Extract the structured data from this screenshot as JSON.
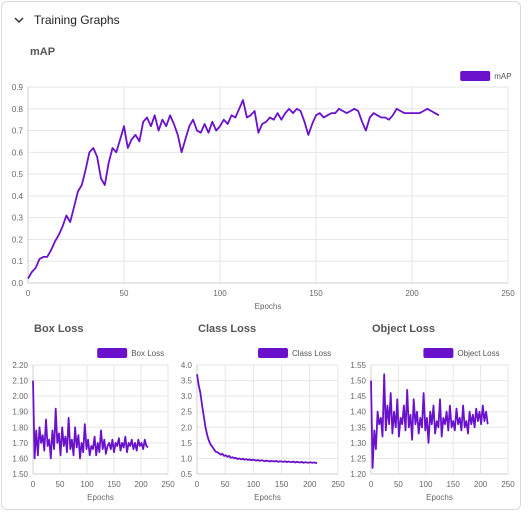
{
  "panel": {
    "title": "Training Graphs"
  },
  "colors": {
    "series": "#6a11cb",
    "grid": "#e6e6e6",
    "axis": "#666666"
  },
  "chart_data": [
    {
      "id": "map",
      "type": "line",
      "title": "mAP",
      "xlabel": "Epochs",
      "ylabel": "",
      "legend": [
        "mAP"
      ],
      "legend_position": "top-right",
      "grid": true,
      "xlim": [
        0,
        250
      ],
      "ylim": [
        0,
        0.9
      ],
      "xticks": [
        0,
        50,
        100,
        150,
        200,
        250
      ],
      "yticks": [
        0,
        0.1,
        0.2,
        0.3,
        0.4,
        0.5,
        0.6,
        0.7,
        0.8,
        0.9
      ],
      "ytick_format": 1,
      "series": [
        {
          "name": "mAP",
          "x": [
            0,
            2,
            4,
            6,
            8,
            10,
            12,
            14,
            16,
            18,
            20,
            22,
            24,
            26,
            28,
            30,
            32,
            34,
            36,
            38,
            40,
            42,
            44,
            46,
            48,
            50,
            52,
            54,
            56,
            58,
            60,
            62,
            64,
            66,
            68,
            70,
            72,
            74,
            76,
            78,
            80,
            82,
            84,
            86,
            88,
            90,
            92,
            94,
            96,
            98,
            100,
            102,
            104,
            106,
            108,
            110,
            112,
            114,
            116,
            118,
            120,
            122,
            124,
            126,
            128,
            130,
            132,
            134,
            136,
            138,
            140,
            142,
            144,
            146,
            148,
            150,
            152,
            154,
            156,
            158,
            160,
            162,
            164,
            166,
            168,
            170,
            172,
            174,
            176,
            178,
            180,
            182,
            184,
            186,
            188,
            190,
            192,
            194,
            196,
            198,
            200,
            202,
            204,
            206,
            208,
            210,
            212,
            214
          ],
          "y": [
            0.02,
            0.05,
            0.07,
            0.11,
            0.12,
            0.12,
            0.15,
            0.19,
            0.22,
            0.26,
            0.31,
            0.28,
            0.35,
            0.42,
            0.45,
            0.52,
            0.6,
            0.62,
            0.58,
            0.48,
            0.45,
            0.55,
            0.62,
            0.6,
            0.66,
            0.72,
            0.62,
            0.66,
            0.68,
            0.65,
            0.74,
            0.76,
            0.72,
            0.77,
            0.7,
            0.75,
            0.72,
            0.77,
            0.73,
            0.68,
            0.6,
            0.66,
            0.72,
            0.75,
            0.7,
            0.69,
            0.73,
            0.69,
            0.74,
            0.7,
            0.72,
            0.75,
            0.73,
            0.77,
            0.76,
            0.8,
            0.84,
            0.76,
            0.77,
            0.79,
            0.69,
            0.73,
            0.74,
            0.76,
            0.75,
            0.78,
            0.75,
            0.78,
            0.8,
            0.78,
            0.8,
            0.79,
            0.74,
            0.68,
            0.73,
            0.77,
            0.78,
            0.76,
            0.77,
            0.78,
            0.78,
            0.8,
            0.79,
            0.78,
            0.79,
            0.8,
            0.79,
            0.74,
            0.7,
            0.76,
            0.78,
            0.77,
            0.76,
            0.76,
            0.75,
            0.77,
            0.8,
            0.79,
            0.78,
            0.78,
            0.78,
            0.78,
            0.78,
            0.79,
            0.8,
            0.79,
            0.78,
            0.77
          ]
        }
      ]
    },
    {
      "id": "box",
      "type": "line",
      "title": "Box Loss",
      "xlabel": "Epochs",
      "ylabel": "",
      "legend": [
        "Box Loss"
      ],
      "legend_position": "top-right",
      "grid": true,
      "xlim": [
        0,
        250
      ],
      "ylim": [
        1.5,
        2.2
      ],
      "xticks": [
        0,
        50,
        100,
        150,
        200,
        250
      ],
      "yticks": [
        1.5,
        1.6,
        1.7,
        1.8,
        1.9,
        2.0,
        2.1,
        2.2
      ],
      "ytick_format": 2,
      "series": [
        {
          "name": "Box Loss",
          "x": [
            0,
            3,
            6,
            9,
            12,
            15,
            18,
            21,
            24,
            27,
            30,
            33,
            36,
            39,
            42,
            45,
            48,
            51,
            54,
            57,
            60,
            63,
            66,
            69,
            72,
            75,
            78,
            81,
            84,
            87,
            90,
            93,
            96,
            99,
            102,
            105,
            108,
            111,
            114,
            117,
            120,
            123,
            126,
            129,
            132,
            135,
            138,
            141,
            144,
            147,
            150,
            153,
            156,
            159,
            162,
            165,
            168,
            171,
            174,
            177,
            180,
            183,
            186,
            189,
            192,
            195,
            198,
            201,
            204,
            207,
            210,
            213
          ],
          "y": [
            2.1,
            1.6,
            1.78,
            1.62,
            1.8,
            1.7,
            1.75,
            1.65,
            1.85,
            1.68,
            1.72,
            1.6,
            1.78,
            1.66,
            1.92,
            1.7,
            1.76,
            1.62,
            1.8,
            1.68,
            1.74,
            1.64,
            1.86,
            1.66,
            1.72,
            1.62,
            1.8,
            1.67,
            1.75,
            1.6,
            1.7,
            1.64,
            1.82,
            1.66,
            1.72,
            1.62,
            1.68,
            1.66,
            1.74,
            1.62,
            1.7,
            1.64,
            1.78,
            1.66,
            1.72,
            1.63,
            1.68,
            1.7,
            1.66,
            1.72,
            1.64,
            1.7,
            1.68,
            1.73,
            1.65,
            1.7,
            1.67,
            1.74,
            1.64,
            1.7,
            1.68,
            1.72,
            1.66,
            1.7,
            1.65,
            1.72,
            1.68,
            1.7,
            1.66,
            1.72,
            1.68,
            1.67
          ]
        }
      ]
    },
    {
      "id": "class",
      "type": "line",
      "title": "Class Loss",
      "xlabel": "Epochs",
      "ylabel": "",
      "legend": [
        "Class Loss"
      ],
      "legend_position": "top-right",
      "grid": true,
      "xlim": [
        0,
        250
      ],
      "ylim": [
        0.5,
        4.0
      ],
      "xticks": [
        0,
        50,
        100,
        150,
        200,
        250
      ],
      "yticks": [
        0.5,
        1.0,
        1.5,
        2.0,
        2.5,
        3.0,
        3.5,
        4.0
      ],
      "ytick_format": 1,
      "series": [
        {
          "name": "Class Loss",
          "x": [
            0,
            3,
            6,
            9,
            12,
            15,
            18,
            21,
            24,
            27,
            30,
            33,
            36,
            39,
            42,
            45,
            48,
            51,
            54,
            57,
            60,
            63,
            66,
            69,
            72,
            75,
            78,
            81,
            84,
            87,
            90,
            93,
            96,
            99,
            102,
            105,
            108,
            111,
            114,
            117,
            120,
            123,
            126,
            129,
            132,
            135,
            138,
            141,
            144,
            147,
            150,
            153,
            156,
            159,
            162,
            165,
            168,
            171,
            174,
            177,
            180,
            183,
            186,
            189,
            192,
            195,
            198,
            201,
            204,
            207,
            210,
            213
          ],
          "y": [
            3.7,
            3.35,
            3.1,
            2.7,
            2.35,
            2.0,
            1.75,
            1.58,
            1.45,
            1.38,
            1.3,
            1.22,
            1.2,
            1.16,
            1.12,
            1.15,
            1.08,
            1.1,
            1.05,
            1.08,
            1.02,
            1.04,
            1.0,
            1.02,
            0.98,
            1.0,
            0.97,
            0.99,
            0.96,
            0.98,
            0.95,
            0.97,
            0.94,
            0.96,
            0.95,
            0.93,
            0.95,
            0.92,
            0.94,
            0.93,
            0.91,
            0.93,
            0.92,
            0.9,
            0.92,
            0.91,
            0.9,
            0.92,
            0.89,
            0.91,
            0.9,
            0.89,
            0.91,
            0.88,
            0.9,
            0.89,
            0.88,
            0.9,
            0.87,
            0.89,
            0.88,
            0.87,
            0.89,
            0.86,
            0.88,
            0.87,
            0.86,
            0.88,
            0.86,
            0.87,
            0.86,
            0.85
          ]
        }
      ]
    },
    {
      "id": "object",
      "type": "line",
      "title": "Object Loss",
      "xlabel": "Epochs",
      "ylabel": "",
      "legend": [
        "Object Loss"
      ],
      "legend_position": "top-right",
      "grid": true,
      "xlim": [
        0,
        250
      ],
      "ylim": [
        1.2,
        1.55
      ],
      "xticks": [
        0,
        50,
        100,
        150,
        200,
        250
      ],
      "yticks": [
        1.2,
        1.25,
        1.3,
        1.35,
        1.4,
        1.45,
        1.5,
        1.55
      ],
      "ytick_format": 2,
      "series": [
        {
          "name": "Object Loss",
          "x": [
            0,
            3,
            6,
            9,
            12,
            15,
            18,
            21,
            24,
            27,
            30,
            33,
            36,
            39,
            42,
            45,
            48,
            51,
            54,
            57,
            60,
            63,
            66,
            69,
            72,
            75,
            78,
            81,
            84,
            87,
            90,
            93,
            96,
            99,
            102,
            105,
            108,
            111,
            114,
            117,
            120,
            123,
            126,
            129,
            132,
            135,
            138,
            141,
            144,
            147,
            150,
            153,
            156,
            159,
            162,
            165,
            168,
            171,
            174,
            177,
            180,
            183,
            186,
            189,
            192,
            195,
            198,
            201,
            204,
            207,
            210,
            213
          ],
          "y": [
            1.5,
            1.22,
            1.34,
            1.28,
            1.4,
            1.36,
            1.38,
            1.32,
            1.52,
            1.34,
            1.42,
            1.36,
            1.46,
            1.33,
            1.4,
            1.35,
            1.44,
            1.32,
            1.38,
            1.36,
            1.42,
            1.34,
            1.47,
            1.35,
            1.39,
            1.31,
            1.44,
            1.36,
            1.4,
            1.33,
            1.38,
            1.35,
            1.46,
            1.34,
            1.38,
            1.3,
            1.4,
            1.36,
            1.42,
            1.33,
            1.37,
            1.35,
            1.44,
            1.32,
            1.38,
            1.36,
            1.4,
            1.34,
            1.42,
            1.35,
            1.37,
            1.34,
            1.41,
            1.36,
            1.38,
            1.34,
            1.42,
            1.35,
            1.37,
            1.33,
            1.4,
            1.36,
            1.39,
            1.35,
            1.41,
            1.37,
            1.4,
            1.36,
            1.42,
            1.37,
            1.4,
            1.36
          ]
        }
      ]
    }
  ]
}
